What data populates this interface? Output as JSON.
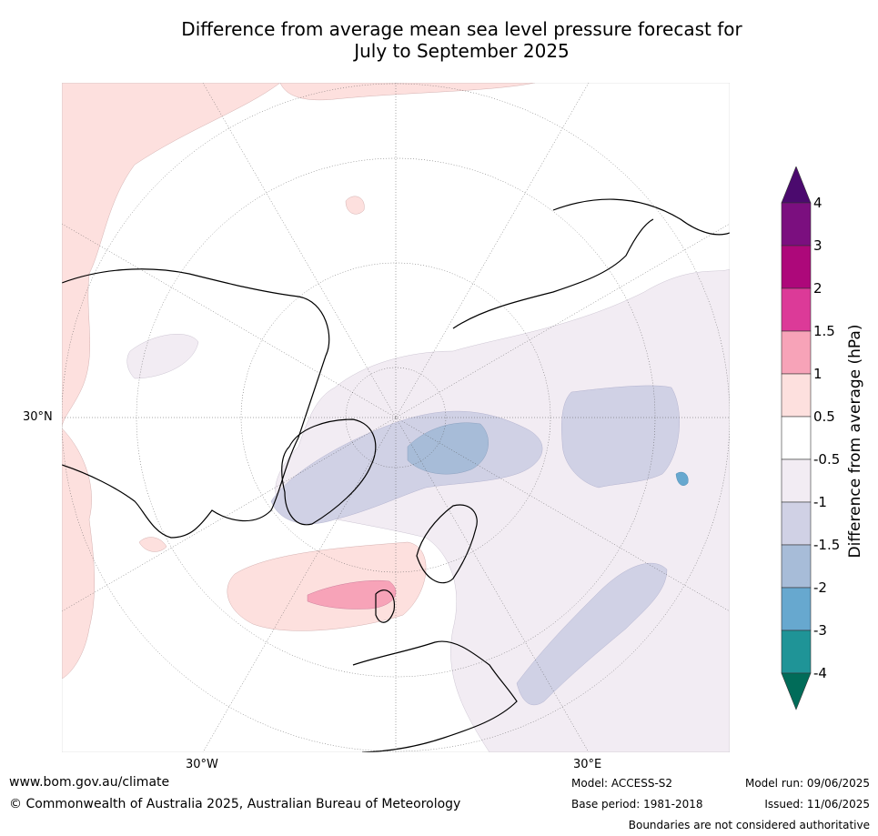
{
  "title": {
    "line1": "Difference from average mean sea level pressure forecast for",
    "line2": "July to September 2025"
  },
  "map": {
    "lat_label": "30°N",
    "lon_labels": {
      "west": "30°W",
      "east": "30°E"
    }
  },
  "colorbar": {
    "title": "Difference from average (hPa)",
    "ticks": [
      "4",
      "3",
      "2",
      "1.5",
      "1",
      "0.5",
      "-0.5",
      "-1",
      "-1.5",
      "-2",
      "-3",
      "-4"
    ],
    "colors": {
      "above_4": "#4b0a6e",
      "c_3_4": "#7b0f7f",
      "c_2_3": "#ad087a",
      "c_15_2": "#dc3a98",
      "c_1_15": "#f7a3b8",
      "c_05_1": "#fde0de",
      "c_neutral": "#ffffff",
      "c_m1_m05": "#f2ecf3",
      "c_m15_m1": "#d0d1e5",
      "c_m2_m15": "#a7bcd8",
      "c_m3_m2": "#67a8cf",
      "c_m4_m3": "#1f9497",
      "below_m4": "#016c59"
    }
  },
  "footer": {
    "website": "www.bom.gov.au/climate",
    "copyright": "© Commonwealth of Australia 2025, Australian Bureau of Meteorology",
    "model": "Model: ACCESS-S2",
    "base_period": "Base period: 1981-2018",
    "model_run": "Model run: 09/06/2025",
    "issued": "Issued: 11/06/2025",
    "disclaimer": "Boundaries are not considered authoritative"
  }
}
